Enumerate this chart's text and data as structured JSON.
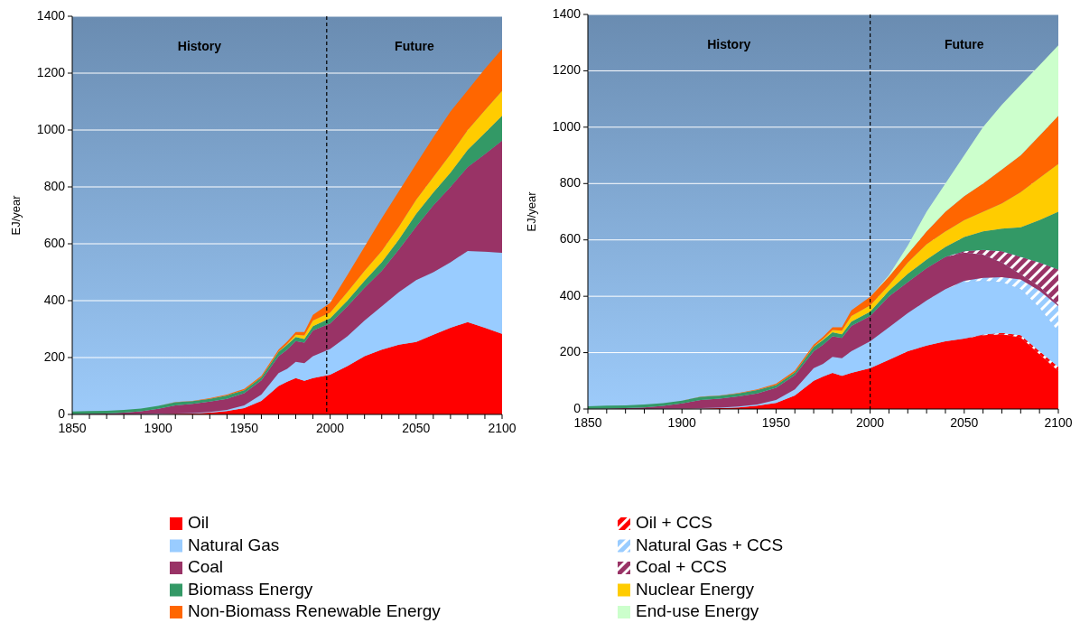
{
  "chart_data": [
    {
      "type": "area",
      "stacked": true,
      "ylabel": "EJ/year",
      "xlim": [
        1850,
        2100
      ],
      "ylim": [
        0,
        1400
      ],
      "xticks": [
        1850,
        {
          "value": 1860,
          "label": null
        },
        {
          "value": 1870,
          "label": null
        },
        {
          "value": 1880,
          "label": null
        },
        {
          "value": 1890,
          "label": null
        },
        1900,
        {
          "value": 1910,
          "label": null
        },
        {
          "value": 1920,
          "label": null
        },
        {
          "value": 1930,
          "label": null
        },
        {
          "value": 1940,
          "label": null
        },
        1950,
        {
          "value": 1960,
          "label": null
        },
        {
          "value": 1970,
          "label": null
        },
        {
          "value": 1980,
          "label": null
        },
        {
          "value": 1990,
          "label": null
        },
        2000,
        {
          "value": 2010,
          "label": null
        },
        {
          "value": 2020,
          "label": null
        },
        {
          "value": 2030,
          "label": null
        },
        {
          "value": 2040,
          "label": null
        },
        2050,
        {
          "value": 2060,
          "label": null
        },
        {
          "value": 2070,
          "label": null
        },
        {
          "value": 2080,
          "label": null
        },
        {
          "value": 2090,
          "label": null
        },
        2100
      ],
      "yticks": [
        0,
        200,
        400,
        600,
        800,
        1000,
        1200,
        1400
      ],
      "grid": "y",
      "legend": "bottom",
      "x": [
        1850,
        1860,
        1870,
        1880,
        1890,
        1900,
        1910,
        1920,
        1930,
        1940,
        1950,
        1960,
        1970,
        1975,
        1980,
        1985,
        1990,
        2000,
        2010,
        2020,
        2030,
        2040,
        2050,
        2060,
        2070,
        2080,
        2090,
        2100
      ],
      "series": [
        {
          "name": "Oil",
          "color": "#ff0000",
          "values": [
            0,
            0,
            0,
            0,
            0,
            1,
            2,
            3,
            6,
            12,
            22,
            48,
            100,
            115,
            128,
            118,
            128,
            140,
            170,
            205,
            228,
            245,
            255,
            280,
            305,
            325,
            305,
            283
          ]
        },
        {
          "name": "Natural Gas",
          "color": "#99ccff",
          "values": [
            0,
            0,
            0,
            0,
            1,
            1,
            1,
            2,
            3,
            4,
            10,
            22,
            45,
            45,
            57,
            62,
            77,
            90,
            105,
            125,
            152,
            185,
            217,
            220,
            230,
            250,
            267,
            285
          ]
        },
        {
          "name": "Coal",
          "color": "#993366",
          "values": [
            1,
            2,
            3,
            6,
            10,
            18,
            29,
            32,
            36,
            39,
            43,
            50,
            60,
            68,
            73,
            72,
            90,
            90,
            105,
            115,
            125,
            150,
            188,
            235,
            265,
            295,
            343,
            395
          ]
        },
        {
          "name": "Biomass Energy",
          "color": "#339966",
          "values": [
            9,
            10,
            10,
            10,
            10,
            10,
            11,
            10,
            10,
            12,
            10,
            10,
            15,
            17,
            14,
            13,
            15,
            18,
            20,
            25,
            30,
            35,
            45,
            45,
            50,
            60,
            75,
            87
          ]
        },
        {
          "name": "Nuclear Energy",
          "color": "#ffcc00",
          "values": [
            0,
            0,
            0,
            0,
            0,
            0,
            0,
            0,
            0,
            0,
            0,
            0,
            1,
            3,
            8,
            13,
            20,
            20,
            30,
            35,
            40,
            45,
            50,
            55,
            65,
            70,
            80,
            88
          ]
        },
        {
          "name": "Non-Biomass Renewable Energy",
          "color": "#ff6600",
          "values": [
            0,
            0,
            0,
            0,
            0,
            0,
            1,
            1,
            2,
            3,
            5,
            6,
            7,
            8,
            10,
            12,
            20,
            34,
            60,
            85,
            115,
            125,
            125,
            140,
            150,
            140,
            145,
            147
          ]
        }
      ],
      "ref_lines": [
        {
          "axis": "x",
          "value": 1998,
          "color": "#000000",
          "line_style": "dashed"
        }
      ],
      "annotations": [
        "History",
        "Future"
      ]
    },
    {
      "type": "area",
      "stacked": true,
      "ylabel": "EJ/year",
      "xlim": [
        1850,
        2100
      ],
      "ylim": [
        0,
        1400
      ],
      "xticks": [
        1850,
        {
          "value": 1860,
          "label": null
        },
        {
          "value": 1870,
          "label": null
        },
        {
          "value": 1880,
          "label": null
        },
        {
          "value": 1890,
          "label": null
        },
        1900,
        {
          "value": 1910,
          "label": null
        },
        {
          "value": 1920,
          "label": null
        },
        {
          "value": 1930,
          "label": null
        },
        {
          "value": 1940,
          "label": null
        },
        1950,
        {
          "value": 1960,
          "label": null
        },
        {
          "value": 1970,
          "label": null
        },
        {
          "value": 1980,
          "label": null
        },
        {
          "value": 1990,
          "label": null
        },
        2000,
        {
          "value": 2010,
          "label": null
        },
        {
          "value": 2020,
          "label": null
        },
        {
          "value": 2030,
          "label": null
        },
        {
          "value": 2040,
          "label": null
        },
        2050,
        {
          "value": 2060,
          "label": null
        },
        {
          "value": 2070,
          "label": null
        },
        {
          "value": 2080,
          "label": null
        },
        {
          "value": 2090,
          "label": null
        },
        2100
      ],
      "yticks": [
        0,
        200,
        400,
        600,
        800,
        1000,
        1200,
        1400
      ],
      "grid": "y",
      "legend": "bottom",
      "x": [
        1850,
        1860,
        1870,
        1880,
        1890,
        1900,
        1910,
        1920,
        1930,
        1940,
        1950,
        1960,
        1970,
        1975,
        1980,
        1985,
        1990,
        2000,
        2010,
        2020,
        2030,
        2040,
        2050,
        2060,
        2070,
        2080,
        2090,
        2100
      ],
      "series": [
        {
          "name": "Oil",
          "color": "#ff0000",
          "values": [
            0,
            0,
            0,
            0,
            0,
            1,
            2,
            3,
            6,
            12,
            22,
            48,
            100,
            115,
            128,
            118,
            128,
            145,
            175,
            205,
            225,
            240,
            250,
            262,
            265,
            255,
            195,
            135
          ]
        },
        {
          "name": "Oil + CCS",
          "color": "#ff0000",
          "values": [
            0,
            0,
            0,
            0,
            0,
            0,
            0,
            0,
            0,
            0,
            0,
            0,
            0,
            0,
            0,
            0,
            0,
            0,
            0,
            0,
            0,
            0,
            0,
            2,
            5,
            7,
            10,
            15
          ]
        },
        {
          "name": "Natural Gas",
          "color": "#99ccff",
          "values": [
            0,
            0,
            0,
            0,
            1,
            1,
            1,
            2,
            3,
            4,
            10,
            22,
            45,
            45,
            57,
            62,
            77,
            95,
            115,
            135,
            160,
            185,
            200,
            191,
            180,
            163,
            155,
            125
          ]
        },
        {
          "name": "Natural Gas + CCS",
          "color": "#99ccff",
          "values": [
            0,
            0,
            0,
            0,
            0,
            0,
            0,
            0,
            0,
            0,
            0,
            0,
            0,
            0,
            0,
            0,
            0,
            0,
            0,
            0,
            0,
            0,
            5,
            10,
            18,
            35,
            60,
            90
          ]
        },
        {
          "name": "Coal",
          "color": "#993366",
          "values": [
            1,
            2,
            3,
            6,
            10,
            18,
            29,
            32,
            36,
            39,
            43,
            50,
            60,
            68,
            73,
            72,
            90,
            90,
            110,
            110,
            115,
            115,
            100,
            83,
            52,
            18,
            15,
            5
          ]
        },
        {
          "name": "Coal + CCS",
          "color": "#993366",
          "values": [
            0,
            0,
            0,
            0,
            0,
            0,
            0,
            0,
            0,
            0,
            0,
            0,
            0,
            0,
            0,
            0,
            0,
            0,
            0,
            0,
            0,
            0,
            5,
            17,
            40,
            62,
            85,
            125
          ]
        },
        {
          "name": "Biomass Energy",
          "color": "#339966",
          "values": [
            9,
            10,
            10,
            10,
            10,
            10,
            11,
            10,
            10,
            12,
            10,
            10,
            15,
            17,
            14,
            13,
            15,
            15,
            20,
            30,
            30,
            35,
            50,
            65,
            80,
            105,
            150,
            205
          ]
        },
        {
          "name": "Nuclear Energy",
          "color": "#ffcc00",
          "values": [
            0,
            0,
            0,
            0,
            0,
            0,
            0,
            0,
            0,
            0,
            0,
            0,
            1,
            3,
            8,
            13,
            20,
            23,
            20,
            40,
            55,
            55,
            60,
            70,
            90,
            125,
            150,
            170
          ]
        },
        {
          "name": "Non-Biomass Renewable Energy",
          "color": "#ff6600",
          "values": [
            0,
            0,
            0,
            0,
            0,
            0,
            1,
            1,
            2,
            3,
            5,
            6,
            7,
            8,
            10,
            12,
            20,
            30,
            30,
            30,
            45,
            70,
            85,
            100,
            120,
            130,
            150,
            170
          ]
        },
        {
          "name": "End-use Energy",
          "color": "#ccffcc",
          "values": [
            0,
            0,
            0,
            0,
            0,
            0,
            0,
            0,
            0,
            0,
            0,
            0,
            0,
            0,
            0,
            0,
            0,
            0,
            5,
            30,
            70,
            100,
            145,
            200,
            230,
            250,
            250,
            250
          ]
        }
      ],
      "ref_lines": [
        {
          "axis": "x",
          "value": 2000,
          "color": "#000000",
          "line_style": "dashed"
        }
      ],
      "annotations": [
        "History",
        "Future"
      ]
    }
  ]
}
